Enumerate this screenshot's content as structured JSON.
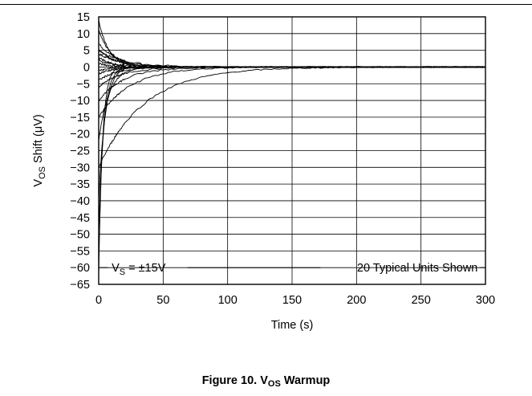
{
  "chart_data": {
    "type": "line",
    "title": "",
    "xlabel": "Time (s)",
    "ylabel": {
      "main": "V",
      "sub": "OS",
      "rest": " Shift (μV)"
    },
    "xlim": [
      0,
      300
    ],
    "ylim": [
      -65,
      15
    ],
    "x_ticks": [
      0,
      50,
      100,
      150,
      200,
      250,
      300
    ],
    "y_ticks": [
      15,
      10,
      5,
      0,
      -5,
      -10,
      -15,
      -20,
      -25,
      -30,
      -35,
      -40,
      -45,
      -50,
      -55,
      -60,
      -65
    ],
    "grid": true,
    "annotations": {
      "condition": {
        "main": "V",
        "sub": "S",
        "rest": " = ±15V"
      },
      "units_note": "20 Typical Units Shown"
    },
    "series": [
      {
        "start": 14,
        "tau": 8
      },
      {
        "start": 11,
        "tau": 10
      },
      {
        "start": 7,
        "tau": 15
      },
      {
        "start": 5.5,
        "tau": 12
      },
      {
        "start": 5,
        "tau": 20
      },
      {
        "start": 4,
        "tau": 18
      },
      {
        "start": 3,
        "tau": 10
      },
      {
        "start": 2,
        "tau": 14
      },
      {
        "start": 1,
        "tau": 12
      },
      {
        "start": -1,
        "tau": 10
      },
      {
        "start": -2,
        "tau": 12
      },
      {
        "start": -4,
        "tau": 15
      },
      {
        "start": -6,
        "tau": 18
      },
      {
        "start": -10,
        "tau": 20
      },
      {
        "start": -15,
        "tau": 25
      },
      {
        "start": -22,
        "tau": 8
      },
      {
        "start": -30,
        "tau": 35
      },
      {
        "start": -40,
        "tau": 5
      },
      {
        "start": -50,
        "tau": 4
      },
      {
        "start": -62,
        "tau": 3
      }
    ]
  },
  "caption": {
    "prefix": "Figure 10. V",
    "sub": "OS",
    "suffix": " Warmup"
  }
}
